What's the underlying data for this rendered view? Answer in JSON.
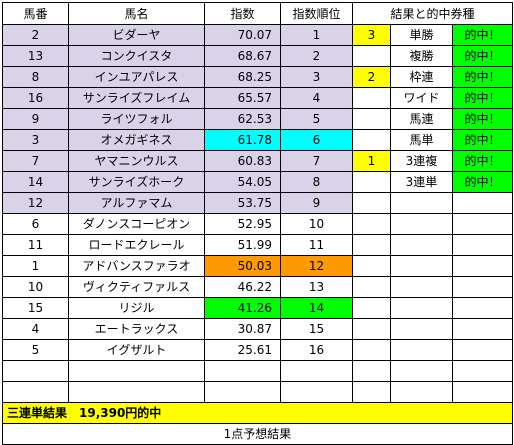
{
  "headers": {
    "number": "馬番",
    "name": "馬名",
    "index": "指数",
    "rank": "指数順位",
    "result": "結果と的中券種"
  },
  "rows": [
    {
      "number": "2",
      "name": "ビダーヤ",
      "index": "70.07",
      "rank": "1",
      "place": "3",
      "ticket": "単勝",
      "hit": "的中！"
    },
    {
      "number": "13",
      "name": "コンクイスタ",
      "index": "68.67",
      "rank": "2",
      "place": "",
      "ticket": "複勝",
      "hit": "的中！"
    },
    {
      "number": "8",
      "name": "インユアパレス",
      "index": "68.25",
      "rank": "3",
      "place": "2",
      "ticket": "枠連",
      "hit": "的中！"
    },
    {
      "number": "16",
      "name": "サンライズフレイム",
      "index": "65.57",
      "rank": "4",
      "place": "",
      "ticket": "ワイド",
      "hit": "的中！"
    },
    {
      "number": "9",
      "name": "ライツフォル",
      "index": "62.53",
      "rank": "5",
      "place": "",
      "ticket": "馬連",
      "hit": "的中！"
    },
    {
      "number": "3",
      "name": "オメガギネス",
      "index": "61.78",
      "rank": "6",
      "place": "",
      "ticket": "馬単",
      "hit": "的中！"
    },
    {
      "number": "7",
      "name": "ヤマニンウルス",
      "index": "60.83",
      "rank": "7",
      "place": "1",
      "ticket": "3連複",
      "hit": "的中！"
    },
    {
      "number": "14",
      "name": "サンライズホーク",
      "index": "54.05",
      "rank": "8",
      "place": "",
      "ticket": "3連単",
      "hit": "的中！"
    },
    {
      "number": "12",
      "name": "アルファマム",
      "index": "53.75",
      "rank": "9",
      "place": "",
      "ticket": "",
      "hit": ""
    },
    {
      "number": "6",
      "name": "ダノンスコーピオン",
      "index": "52.95",
      "rank": "10",
      "place": "",
      "ticket": "",
      "hit": ""
    },
    {
      "number": "11",
      "name": "ロードエクレール",
      "index": "51.99",
      "rank": "11",
      "place": "",
      "ticket": "",
      "hit": ""
    },
    {
      "number": "1",
      "name": "アドバンスファラオ",
      "index": "50.03",
      "rank": "12",
      "place": "",
      "ticket": "",
      "hit": ""
    },
    {
      "number": "10",
      "name": "ヴィクティファルス",
      "index": "46.22",
      "rank": "13",
      "place": "",
      "ticket": "",
      "hit": ""
    },
    {
      "number": "15",
      "name": "リジル",
      "index": "41.26",
      "rank": "14",
      "place": "",
      "ticket": "",
      "hit": ""
    },
    {
      "number": "4",
      "name": "エートラックス",
      "index": "30.87",
      "rank": "15",
      "place": "",
      "ticket": "",
      "hit": ""
    },
    {
      "number": "5",
      "name": "イグザルト",
      "index": "25.61",
      "rank": "16",
      "place": "",
      "ticket": "",
      "hit": ""
    }
  ],
  "summary": "三連単結果　19,390円的中",
  "footer": "1点予想結果",
  "colors": {
    "top_pick": "#d9d2e9",
    "cyan": "#00ffff",
    "orange": "#ff9900",
    "green": "#00ff00",
    "yellow": "#ffff00"
  }
}
